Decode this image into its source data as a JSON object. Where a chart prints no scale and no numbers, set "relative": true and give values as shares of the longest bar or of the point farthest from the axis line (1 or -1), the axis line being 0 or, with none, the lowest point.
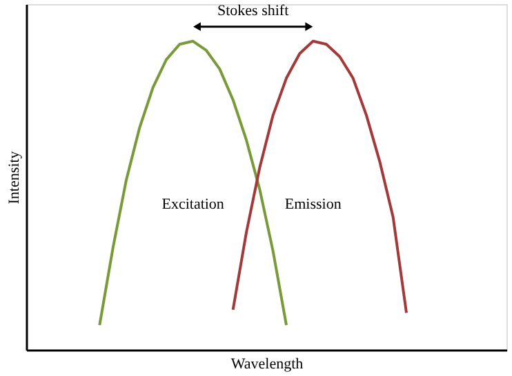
{
  "chart_data": {
    "type": "line",
    "relative": true,
    "xlabel": "Wavelength",
    "ylabel": "Intensity",
    "tick_labels": false,
    "marker": "none",
    "line_style": "solid",
    "categories": [
      null,
      null,
      null,
      null,
      null,
      null,
      null,
      null,
      null,
      null,
      null,
      null,
      null,
      null,
      null,
      null,
      null,
      null,
      null,
      null,
      null,
      null,
      null,
      null,
      null,
      null,
      null,
      null,
      null,
      null,
      null,
      null,
      null,
      null,
      null,
      null
    ],
    "series": [
      {
        "color": "#7a9a3a",
        "values": [
          null,
          null,
          null,
          null,
          null,
          0.08,
          0.33,
          0.55,
          0.72,
          0.85,
          0.94,
          0.99,
          1.0,
          0.97,
          0.91,
          0.81,
          0.68,
          0.52,
          0.32,
          0.08,
          null,
          null,
          null,
          null,
          null,
          null,
          null,
          null,
          null,
          null,
          null,
          null,
          null,
          null,
          null,
          null
        ]
      },
      {
        "color": "#a33a3a",
        "values": [
          null,
          null,
          null,
          null,
          null,
          null,
          null,
          null,
          null,
          null,
          null,
          null,
          null,
          null,
          null,
          0.13,
          0.38,
          0.59,
          0.76,
          0.88,
          0.96,
          1.0,
          0.99,
          0.95,
          0.88,
          0.76,
          0.61,
          0.43,
          0.12,
          null,
          null,
          null,
          null,
          null,
          null,
          null
        ]
      }
    ],
    "annotations": [
      "Stokes shift",
      "Excitation",
      "Emission"
    ]
  }
}
